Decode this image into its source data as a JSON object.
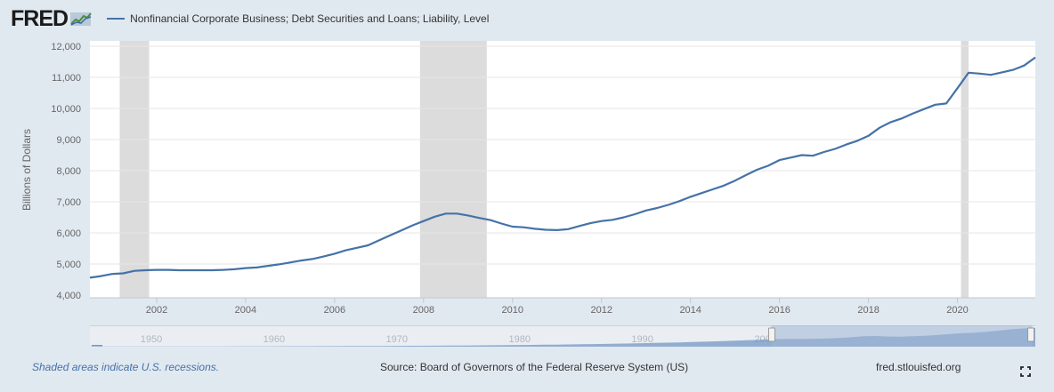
{
  "header": {
    "logo": "FRED",
    "series_title": "Nonfinancial Corporate Business; Debt Securities and Loans; Liability, Level"
  },
  "footer": {
    "recession_note": "Shaded areas indicate U.S. recessions.",
    "source": "Source: Board of Governors of the Federal Reserve System (US)",
    "site": "fred.stlouisfed.org"
  },
  "colors": {
    "line": "#4572a7",
    "background": "#e1e9f0",
    "plot": "#ffffff",
    "recession": "#dcdcdc"
  },
  "icons": {
    "logo": "fred-chart-icon",
    "fullscreen": "fullscreen-icon"
  },
  "navigator": {
    "labels": [
      "1950",
      "1960",
      "1970",
      "1980",
      "1990",
      "2000"
    ],
    "range": [
      1945,
      2022
    ],
    "selected": [
      2000.5,
      2021.75
    ]
  },
  "chart_data": {
    "type": "line",
    "title": "Nonfinancial Corporate Business; Debt Securities and Loans; Liability, Level",
    "xlabel": "",
    "ylabel": "Billions of Dollars",
    "xlim": [
      2000.5,
      2021.75
    ],
    "ylim": [
      4000,
      12000
    ],
    "yticks": [
      4000,
      5000,
      6000,
      7000,
      8000,
      9000,
      10000,
      11000,
      12000
    ],
    "ytick_labels": [
      "4,000",
      "5,000",
      "6,000",
      "7,000",
      "8,000",
      "9,000",
      "10,000",
      "11,000",
      "12,000"
    ],
    "xticks": [
      2002,
      2004,
      2006,
      2008,
      2010,
      2012,
      2014,
      2016,
      2018,
      2020
    ],
    "xtick_labels": [
      "2002",
      "2004",
      "2006",
      "2008",
      "2010",
      "2012",
      "2014",
      "2016",
      "2018",
      "2020"
    ],
    "grid": "horizontal",
    "recessions": [
      [
        2001.17,
        2001.83
      ],
      [
        2007.92,
        2009.42
      ],
      [
        2020.08,
        2020.25
      ]
    ],
    "series": [
      {
        "name": "Nonfinancial Corporate Business; Debt Securities and Loans; Liability, Level",
        "x": [
          2000.5,
          2000.75,
          2001,
          2001.25,
          2001.5,
          2001.75,
          2002,
          2002.25,
          2002.5,
          2002.75,
          2003,
          2003.25,
          2003.5,
          2003.75,
          2004,
          2004.25,
          2004.5,
          2004.75,
          2005,
          2005.25,
          2005.5,
          2005.75,
          2006,
          2006.25,
          2006.5,
          2006.75,
          2007,
          2007.25,
          2007.5,
          2007.75,
          2008,
          2008.25,
          2008.5,
          2008.75,
          2009,
          2009.25,
          2009.5,
          2009.75,
          2010,
          2010.25,
          2010.5,
          2010.75,
          2011,
          2011.25,
          2011.5,
          2011.75,
          2012,
          2012.25,
          2012.5,
          2012.75,
          2013,
          2013.25,
          2013.5,
          2013.75,
          2014,
          2014.25,
          2014.5,
          2014.75,
          2015,
          2015.25,
          2015.5,
          2015.75,
          2016,
          2016.25,
          2016.5,
          2016.75,
          2017,
          2017.25,
          2017.5,
          2017.75,
          2018,
          2018.25,
          2018.5,
          2018.75,
          2019,
          2019.25,
          2019.5,
          2019.75,
          2020,
          2020.25,
          2020.5,
          2020.75,
          2021,
          2021.25,
          2021.5,
          2021.75
        ],
        "values": [
          4560,
          4610,
          4680,
          4700,
          4780,
          4800,
          4810,
          4810,
          4800,
          4800,
          4800,
          4800,
          4810,
          4830,
          4870,
          4890,
          4940,
          4990,
          5050,
          5110,
          5160,
          5240,
          5330,
          5440,
          5520,
          5600,
          5760,
          5920,
          6080,
          6240,
          6380,
          6520,
          6620,
          6620,
          6560,
          6480,
          6410,
          6300,
          6200,
          6180,
          6130,
          6100,
          6090,
          6120,
          6220,
          6310,
          6380,
          6420,
          6500,
          6600,
          6720,
          6800,
          6900,
          7020,
          7160,
          7280,
          7400,
          7520,
          7680,
          7860,
          8030,
          8160,
          8340,
          8420,
          8500,
          8480,
          8600,
          8700,
          8840,
          8960,
          9120,
          9380,
          9560,
          9680,
          9840,
          9980,
          10120,
          10160,
          10650,
          11150,
          11120,
          11080,
          11160,
          11240,
          11380,
          11640
        ]
      }
    ]
  }
}
